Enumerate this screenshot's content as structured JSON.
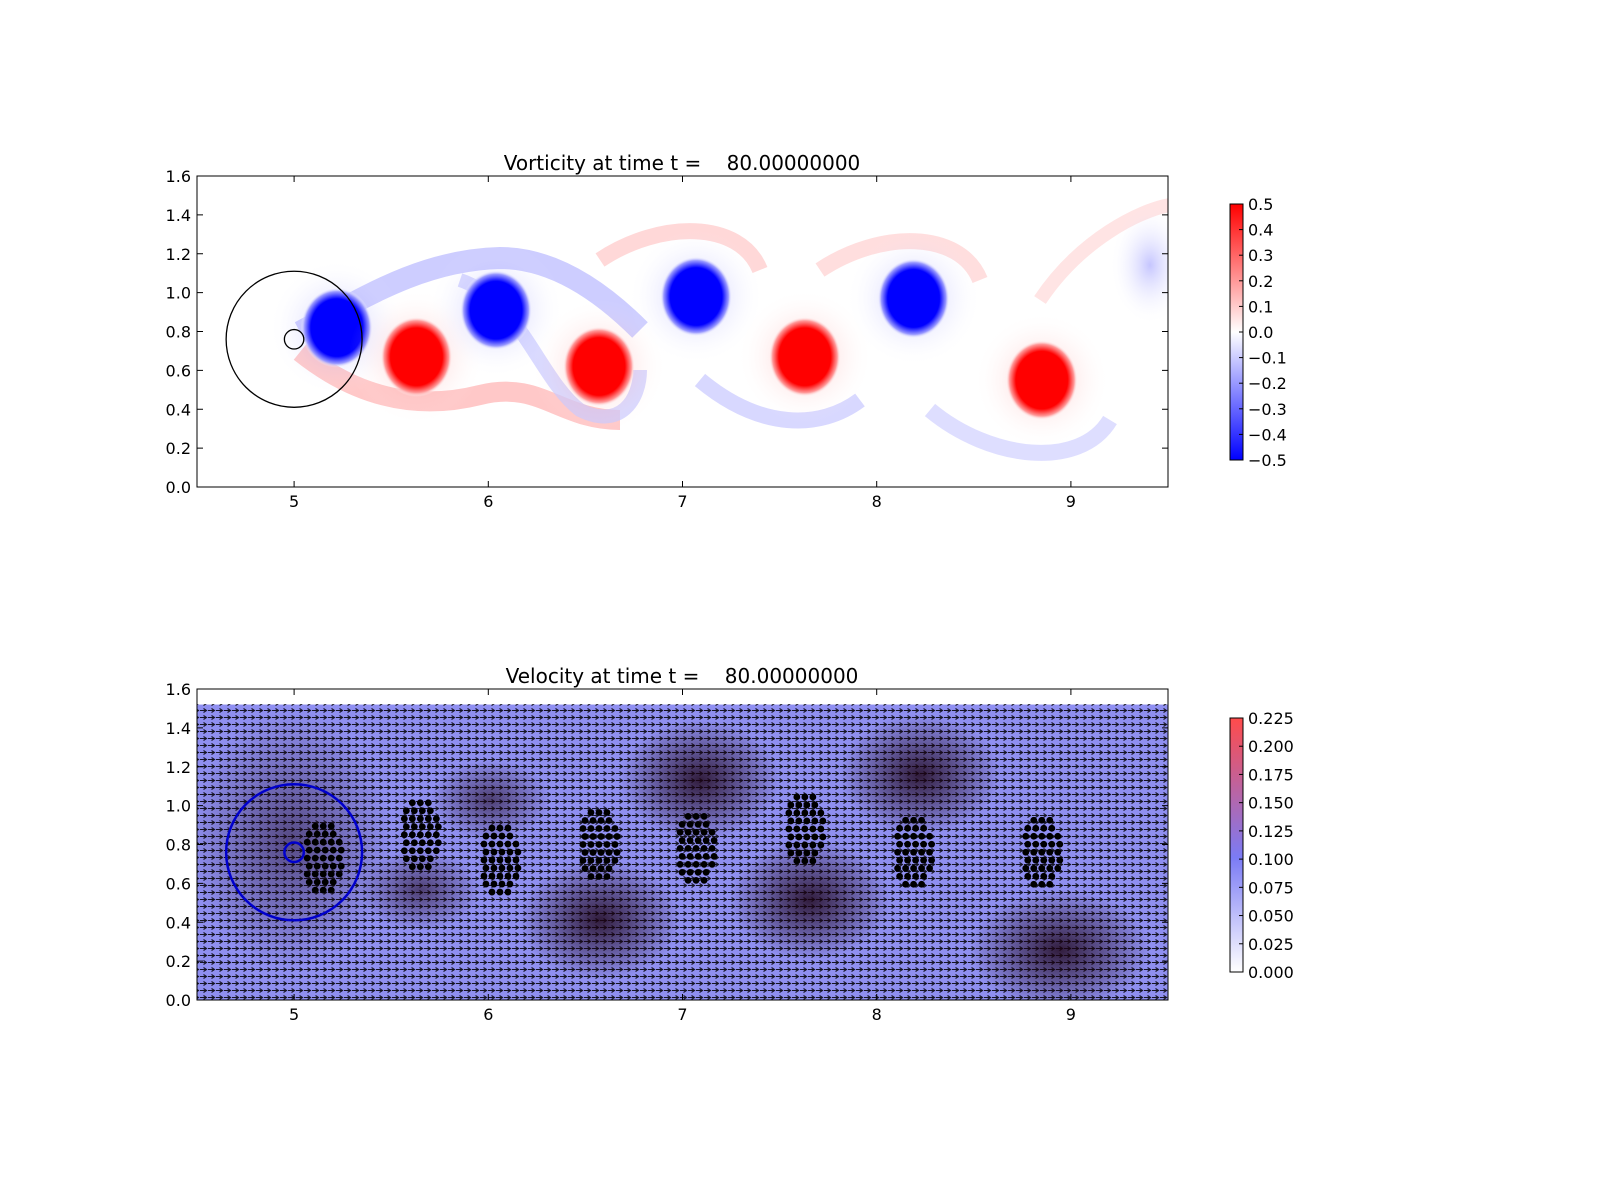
{
  "chart_data": [
    {
      "type": "heatmap",
      "title": "Vorticity at time t =    80.00000000",
      "xlim": [
        4.5,
        9.5
      ],
      "ylim": [
        0.0,
        1.6
      ],
      "xticks": [
        "5",
        "6",
        "7",
        "8",
        "9"
      ],
      "xtick_values": [
        5,
        6,
        7,
        8,
        9
      ],
      "yticks": [
        "0.0",
        "0.2",
        "0.4",
        "0.6",
        "0.8",
        "1.0",
        "1.2",
        "1.4",
        "1.6"
      ],
      "ytick_values": [
        0.0,
        0.2,
        0.4,
        0.6,
        0.8,
        1.0,
        1.2,
        1.4,
        1.6
      ],
      "colorbar": {
        "min": -0.5,
        "max": 0.5,
        "labels": [
          "0.5",
          "0.4",
          "0.3",
          "0.2",
          "0.1",
          "0.0",
          "−0.1",
          "−0.2",
          "−0.3",
          "−0.4",
          "−0.5"
        ],
        "values": [
          0.5,
          0.4,
          0.3,
          0.2,
          0.1,
          0.0,
          -0.1,
          -0.2,
          -0.3,
          -0.4,
          -0.5
        ],
        "colors": {
          "low": "#0000ff",
          "mid": "#ffffff",
          "high": "#ff0000"
        }
      },
      "vortices": [
        {
          "x": 5.22,
          "y": 0.82,
          "sign": -1
        },
        {
          "x": 5.63,
          "y": 0.67,
          "sign": 1
        },
        {
          "x": 6.04,
          "y": 0.91,
          "sign": -1
        },
        {
          "x": 6.57,
          "y": 0.62,
          "sign": 1
        },
        {
          "x": 7.07,
          "y": 0.98,
          "sign": -1
        },
        {
          "x": 7.63,
          "y": 0.67,
          "sign": 1
        },
        {
          "x": 8.19,
          "y": 0.97,
          "sign": -1
        },
        {
          "x": 8.85,
          "y": 0.55,
          "sign": 1
        }
      ],
      "circles": [
        {
          "cx": 5.0,
          "cy": 0.76,
          "r": 0.35
        },
        {
          "cx": 5.0,
          "cy": 0.76,
          "r": 0.05
        }
      ],
      "circle_color": "#000000"
    },
    {
      "type": "heatmap",
      "title": "Velocity at time t =    80.00000000",
      "xlim": [
        4.5,
        9.5
      ],
      "ylim": [
        0.0,
        1.6
      ],
      "xticks": [
        "5",
        "6",
        "7",
        "8",
        "9"
      ],
      "xtick_values": [
        5,
        6,
        7,
        8,
        9
      ],
      "yticks": [
        "0.0",
        "0.2",
        "0.4",
        "0.6",
        "0.8",
        "1.0",
        "1.2",
        "1.4",
        "1.6"
      ],
      "ytick_values": [
        0.0,
        0.2,
        0.4,
        0.6,
        0.8,
        1.0,
        1.2,
        1.4,
        1.6
      ],
      "field_top": 1.52,
      "colorbar": {
        "min": 0.0,
        "max": 0.225,
        "labels": [
          "0.225",
          "0.200",
          "0.175",
          "0.150",
          "0.125",
          "0.100",
          "0.075",
          "0.050",
          "0.025",
          "0.000"
        ],
        "values": [
          0.225,
          0.2,
          0.175,
          0.15,
          0.125,
          0.1,
          0.075,
          0.05,
          0.025,
          0.0
        ],
        "colors": {
          "low": "#ffffff",
          "mid": "#7b7bf5",
          "high": "#ff4b4b"
        }
      },
      "dot_clusters": [
        {
          "x": 5.15,
          "y": 0.73
        },
        {
          "x": 5.65,
          "y": 0.85
        },
        {
          "x": 6.06,
          "y": 0.72
        },
        {
          "x": 6.57,
          "y": 0.8
        },
        {
          "x": 7.07,
          "y": 0.78
        },
        {
          "x": 7.63,
          "y": 0.88
        },
        {
          "x": 8.19,
          "y": 0.76
        },
        {
          "x": 8.85,
          "y": 0.76
        }
      ],
      "circles": [
        {
          "cx": 5.0,
          "cy": 0.76,
          "r": 0.35
        },
        {
          "cx": 5.0,
          "cy": 0.76,
          "r": 0.05
        }
      ],
      "circle_color": "#0000cc"
    }
  ]
}
